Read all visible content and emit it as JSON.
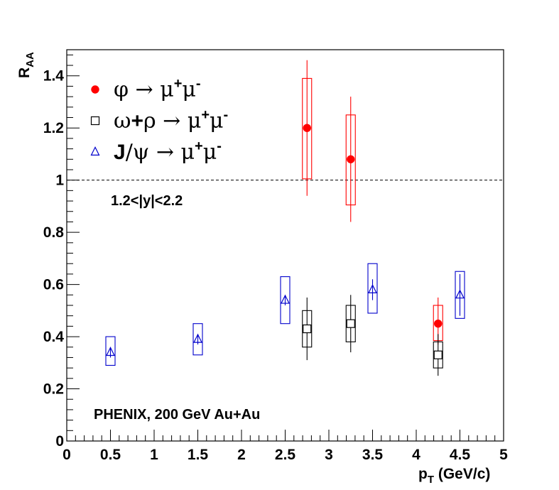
{
  "chart_data": {
    "type": "scatter",
    "title": "",
    "xlabel_main": "p",
    "xlabel_sub": "T",
    "xlabel_unit": "(GeV/c)",
    "ylabel_main": "R",
    "ylabel_sub": "AA",
    "xlim": [
      0,
      5
    ],
    "ylim": [
      0,
      1.5
    ],
    "x_ticks": [
      {
        "v": 0,
        "label": "0"
      },
      {
        "v": 0.5,
        "label": "0.5"
      },
      {
        "v": 1,
        "label": "1"
      },
      {
        "v": 1.5,
        "label": "1.5"
      },
      {
        "v": 2,
        "label": "2"
      },
      {
        "v": 2.5,
        "label": "2.5"
      },
      {
        "v": 3,
        "label": "3"
      },
      {
        "v": 3.5,
        "label": "3.5"
      },
      {
        "v": 4,
        "label": "4"
      },
      {
        "v": 4.5,
        "label": "4.5"
      },
      {
        "v": 5,
        "label": "5"
      }
    ],
    "y_ticks": [
      {
        "v": 0,
        "label": "0"
      },
      {
        "v": 0.2,
        "label": "0.2"
      },
      {
        "v": 0.4,
        "label": "0.4"
      },
      {
        "v": 0.6,
        "label": "0.6"
      },
      {
        "v": 0.8,
        "label": "0.8"
      },
      {
        "v": 1.0,
        "label": "1"
      },
      {
        "v": 1.2,
        "label": "1.2"
      },
      {
        "v": 1.4,
        "label": "1.4"
      }
    ],
    "reference_line": 1.0,
    "grid": false,
    "legend_position": "top-left",
    "series": [
      {
        "name": "φ → μ⁺μ⁻",
        "legend_parts": [
          "φ → μ",
          "+",
          "μ",
          "-"
        ],
        "marker": "filled-circle",
        "color": "#ff0000",
        "points": [
          {
            "x": 2.75,
            "y": 1.2,
            "stat_lo": 0.94,
            "stat_hi": 1.46,
            "sys_lo": 1.005,
            "sys_hi": 1.39
          },
          {
            "x": 3.25,
            "y": 1.08,
            "stat_lo": 0.84,
            "stat_hi": 1.32,
            "sys_lo": 0.905,
            "sys_hi": 1.25
          },
          {
            "x": 4.25,
            "y": 0.45,
            "stat_lo": 0.37,
            "stat_hi": 0.55,
            "sys_lo": 0.385,
            "sys_hi": 0.52
          }
        ]
      },
      {
        "name": "ω+ρ → μ⁺μ⁻",
        "legend_parts": [
          "ω+ρ → μ",
          "+",
          "μ",
          "-"
        ],
        "marker": "open-square",
        "color": "#000000",
        "points": [
          {
            "x": 2.75,
            "y": 0.43,
            "stat_lo": 0.31,
            "stat_hi": 0.55,
            "sys_lo": 0.36,
            "sys_hi": 0.5
          },
          {
            "x": 3.25,
            "y": 0.45,
            "stat_lo": 0.34,
            "stat_hi": 0.56,
            "sys_lo": 0.38,
            "sys_hi": 0.52
          },
          {
            "x": 4.25,
            "y": 0.33,
            "stat_lo": 0.25,
            "stat_hi": 0.41,
            "sys_lo": 0.28,
            "sys_hi": 0.38
          }
        ]
      },
      {
        "name": "J/ψ → μ⁺μ⁻",
        "legend_parts": [
          "J/ψ → μ",
          "+",
          "μ",
          "-"
        ],
        "marker": "open-triangle",
        "color": "#0000cc",
        "points": [
          {
            "x": 0.5,
            "y": 0.34,
            "stat_lo": 0.32,
            "stat_hi": 0.36,
            "sys_lo": 0.29,
            "sys_hi": 0.4
          },
          {
            "x": 1.5,
            "y": 0.39,
            "stat_lo": 0.37,
            "stat_hi": 0.41,
            "sys_lo": 0.33,
            "sys_hi": 0.45
          },
          {
            "x": 2.5,
            "y": 0.54,
            "stat_lo": 0.52,
            "stat_hi": 0.56,
            "sys_lo": 0.45,
            "sys_hi": 0.63
          },
          {
            "x": 3.5,
            "y": 0.58,
            "stat_lo": 0.54,
            "stat_hi": 0.62,
            "sys_lo": 0.49,
            "sys_hi": 0.68
          },
          {
            "x": 4.5,
            "y": 0.56,
            "stat_lo": 0.48,
            "stat_hi": 0.64,
            "sys_lo": 0.47,
            "sys_hi": 0.65
          }
        ]
      }
    ],
    "annotations": [
      {
        "id": "rapidity",
        "text": "1.2<|y|<2.2"
      },
      {
        "id": "experiment",
        "text": "PHENIX, 200 GeV Au+Au"
      }
    ]
  }
}
